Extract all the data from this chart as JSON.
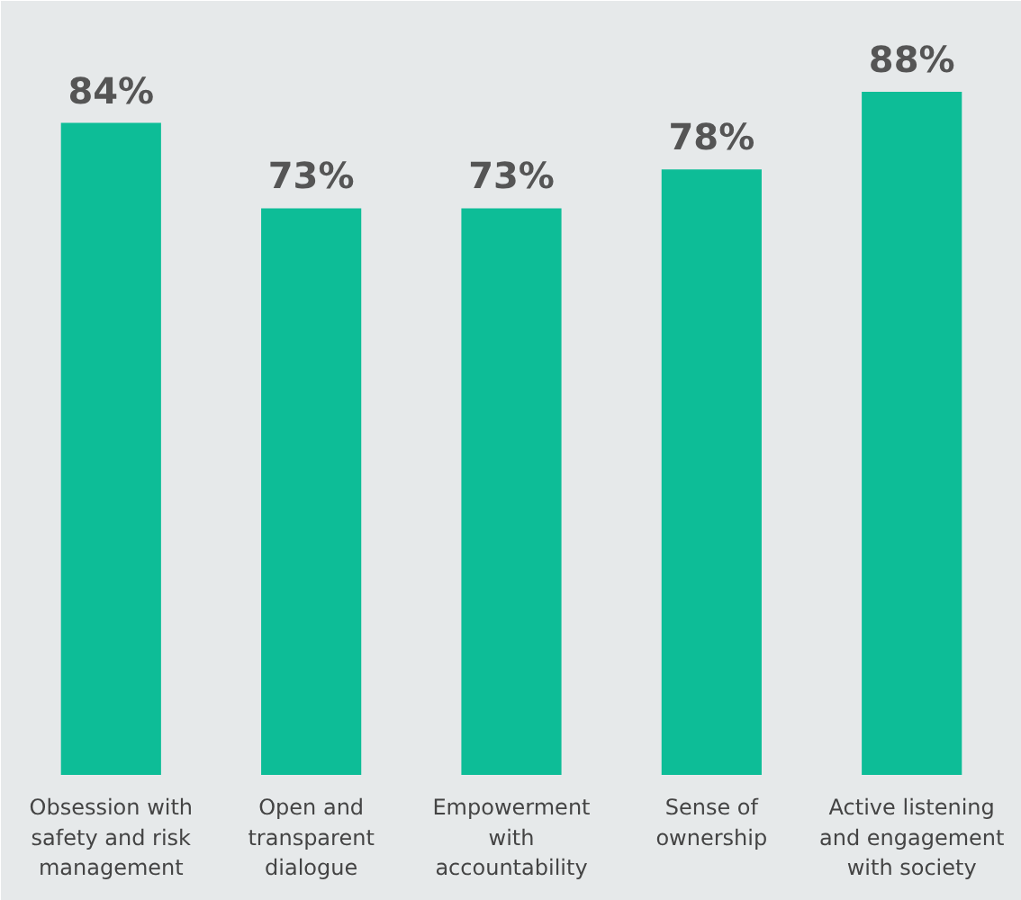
{
  "chart_data": {
    "type": "bar",
    "categories": [
      "Obsession with\nsafety and risk\nmanagement",
      "Open and\ntransparent\ndialogue",
      "Empowerment\nwith\naccountability",
      "Sense of\nownership",
      "Active listening\nand engagement\nwith society"
    ],
    "values": [
      84,
      73,
      73,
      78,
      88
    ],
    "value_labels": [
      "84%",
      "73%",
      "73%",
      "78%",
      "88%"
    ],
    "color": "#0dbd97"
  }
}
